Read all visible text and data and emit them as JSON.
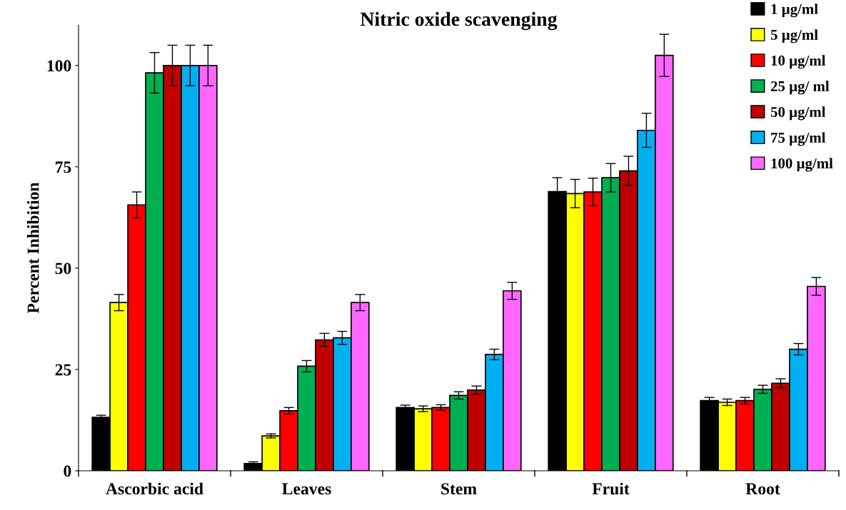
{
  "chart_data": {
    "type": "bar",
    "title": "Nitric oxide scavenging",
    "ylabel": "Percent Inhibition",
    "categories": [
      "Ascorbic acid",
      "Leaves",
      "Stem",
      "Fruit",
      "Root"
    ],
    "ylim": [
      0,
      110
    ],
    "yticks": [
      0,
      25,
      50,
      75,
      100
    ],
    "grid": false,
    "legend": "top right",
    "series": [
      {
        "name": "1 µg/ml",
        "color": "#000000",
        "values": [
          13.2,
          1.8,
          15.6,
          68.9,
          17.3
        ],
        "errors": [
          0.5,
          0.4,
          0.6,
          3.4,
          0.8
        ]
      },
      {
        "name": "5 µg/ml",
        "color": "#ffff00",
        "values": [
          41.5,
          8.6,
          15.3,
          68.4,
          16.9
        ],
        "errors": [
          2,
          0.5,
          0.7,
          3.5,
          0.8
        ]
      },
      {
        "name": "10 µg/ml",
        "color": "#ff0000",
        "values": [
          65.6,
          14.8,
          15.6,
          68.8,
          17.3
        ],
        "errors": [
          3.2,
          0.8,
          0.7,
          3.4,
          0.8
        ]
      },
      {
        "name": "25 µg/ ml",
        "color": "#00b050",
        "values": [
          98.2,
          25.8,
          18.6,
          72.3,
          20.1
        ],
        "errors": [
          5,
          1.4,
          0.9,
          3.5,
          1
        ]
      },
      {
        "name": "50 µg/ml",
        "color": "#c00000",
        "values": [
          100,
          32.3,
          19.9,
          74,
          21.6
        ],
        "errors": [
          5,
          1.6,
          1,
          3.6,
          1.1
        ]
      },
      {
        "name": "75 µg/ml",
        "color": "#00b0f0",
        "values": [
          100,
          32.8,
          28.7,
          84,
          30
        ],
        "errors": [
          5,
          1.6,
          1.3,
          4.2,
          1.4
        ]
      },
      {
        "name": "100 µg/ml",
        "color": "#ff66ff",
        "values": [
          100,
          41.5,
          44.4,
          102.5,
          45.5
        ],
        "errors": [
          5,
          2,
          2.1,
          5.2,
          2.2
        ]
      }
    ]
  }
}
